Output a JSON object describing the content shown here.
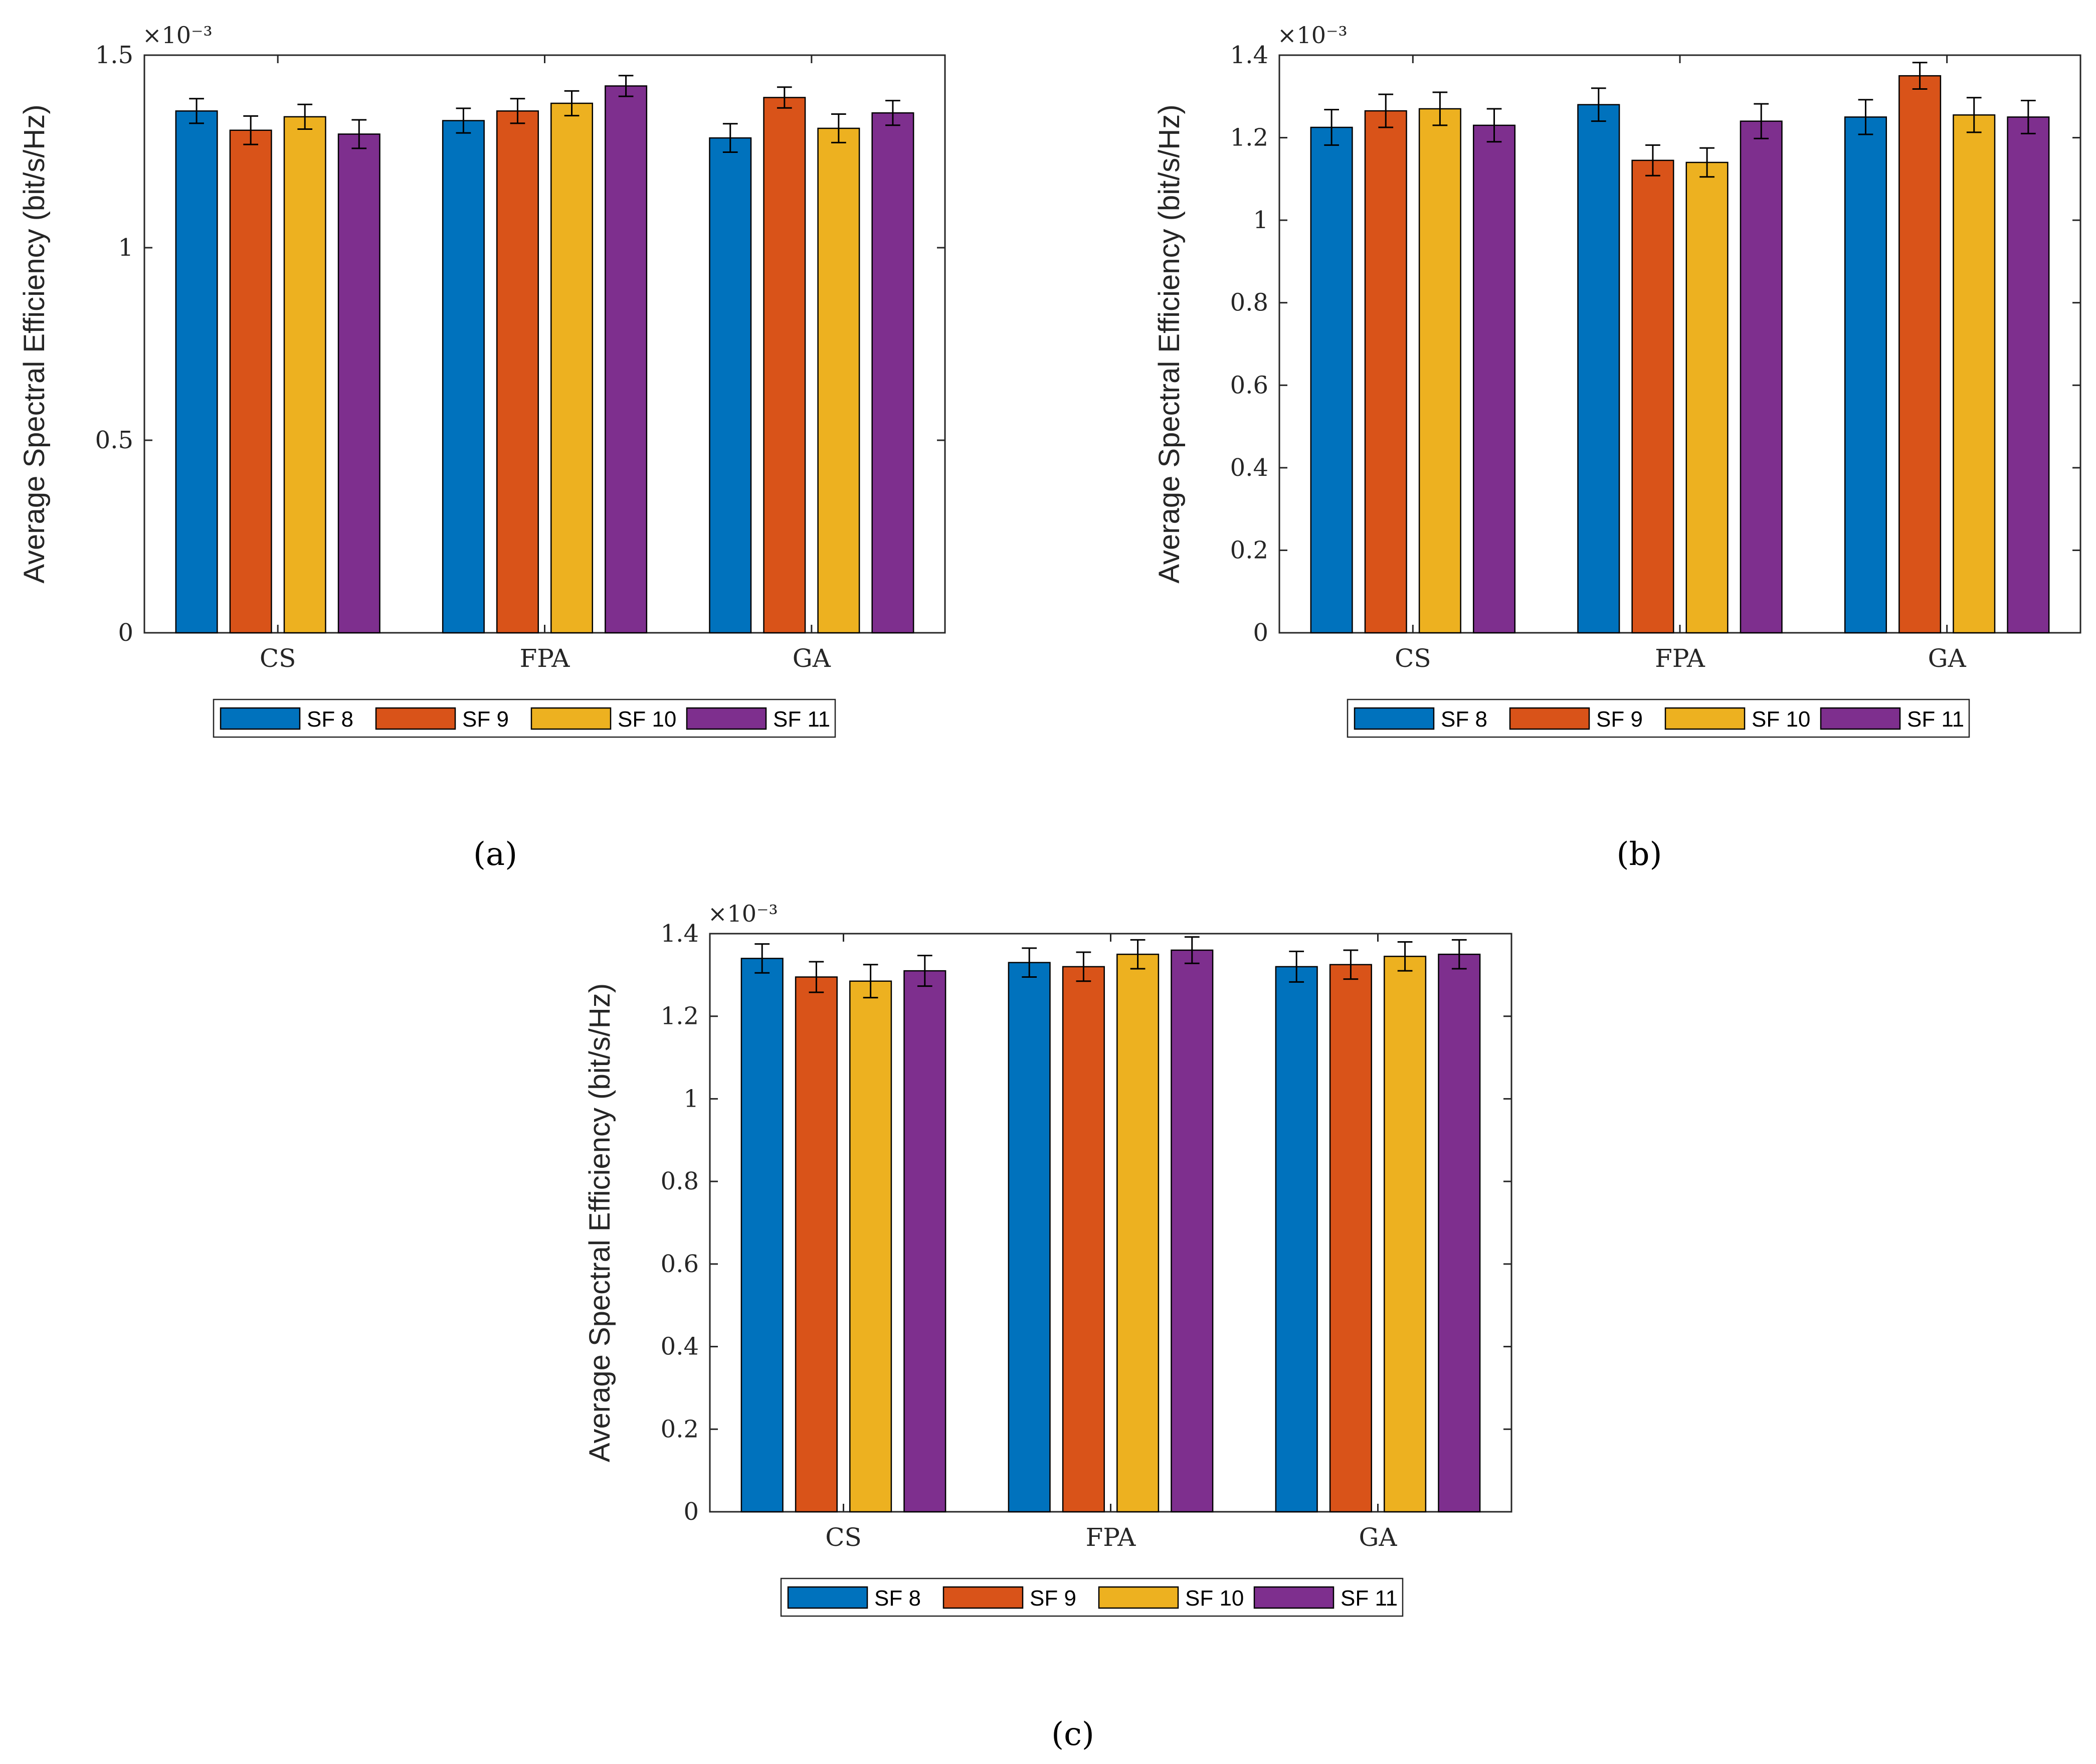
{
  "chart_data": [
    {
      "type": "bar",
      "panel": "a",
      "caption": "(a)",
      "categories": [
        "CS",
        "FPA",
        "GA"
      ],
      "series": [
        {
          "name": "SF 8",
          "values": [
            1.355,
            1.33,
            1.285
          ],
          "errors": [
            0.032,
            0.032,
            0.037
          ]
        },
        {
          "name": "SF 9",
          "values": [
            1.305,
            1.355,
            1.39
          ],
          "errors": [
            0.037,
            0.032,
            0.027
          ]
        },
        {
          "name": "SF 10",
          "values": [
            1.34,
            1.375,
            1.31
          ],
          "errors": [
            0.032,
            0.032,
            0.037
          ]
        },
        {
          "name": "SF 11",
          "values": [
            1.295,
            1.42,
            1.35
          ],
          "errors": [
            0.037,
            0.027,
            0.032
          ]
        }
      ],
      "ylabel": "Average Spectral Efficiency (bit/s/Hz)",
      "xlabel": "",
      "ylim": [
        0,
        1.5
      ],
      "yticks": [
        0,
        0.5,
        1,
        1.5
      ],
      "ytick_labels": [
        "0",
        "0.5",
        "1",
        "1.5"
      ],
      "exponent_label": "×10⁻³",
      "legend": "bottom-center"
    },
    {
      "type": "bar",
      "panel": "b",
      "caption": "(b)",
      "categories": [
        "CS",
        "FPA",
        "GA"
      ],
      "series": [
        {
          "name": "SF 8",
          "values": [
            1.225,
            1.28,
            1.25
          ],
          "errors": [
            0.043,
            0.04,
            0.042
          ]
        },
        {
          "name": "SF 9",
          "values": [
            1.265,
            1.145,
            1.35
          ],
          "errors": [
            0.04,
            0.037,
            0.032
          ]
        },
        {
          "name": "SF 10",
          "values": [
            1.27,
            1.14,
            1.255
          ],
          "errors": [
            0.04,
            0.035,
            0.042
          ]
        },
        {
          "name": "SF 11",
          "values": [
            1.23,
            1.24,
            1.25
          ],
          "errors": [
            0.04,
            0.042,
            0.04
          ]
        }
      ],
      "ylabel": "Average Spectral Efficiency (bit/s/Hz)",
      "xlabel": "",
      "ylim": [
        0,
        1.4
      ],
      "yticks": [
        0,
        0.2,
        0.4,
        0.6,
        0.8,
        1,
        1.2,
        1.4
      ],
      "ytick_labels": [
        "0",
        "0.2",
        "0.4",
        "0.6",
        "0.8",
        "1",
        "1.2",
        "1.4"
      ],
      "exponent_label": "×10⁻³",
      "legend": "bottom-center"
    },
    {
      "type": "bar",
      "panel": "c",
      "caption": "(c)",
      "categories": [
        "CS",
        "FPA",
        "GA"
      ],
      "series": [
        {
          "name": "SF 8",
          "values": [
            1.34,
            1.33,
            1.32
          ],
          "errors": [
            0.035,
            0.035,
            0.037
          ]
        },
        {
          "name": "SF 9",
          "values": [
            1.295,
            1.32,
            1.325
          ],
          "errors": [
            0.037,
            0.035,
            0.035
          ]
        },
        {
          "name": "SF 10",
          "values": [
            1.285,
            1.35,
            1.345
          ],
          "errors": [
            0.04,
            0.035,
            0.035
          ]
        },
        {
          "name": "SF 11",
          "values": [
            1.31,
            1.36,
            1.35
          ],
          "errors": [
            0.037,
            0.032,
            0.035
          ]
        }
      ],
      "ylabel": "Average Spectral Efficiency (bit/s/Hz)",
      "xlabel": "",
      "ylim": [
        0,
        1.4
      ],
      "yticks": [
        0,
        0.2,
        0.4,
        0.6,
        0.8,
        1,
        1.2,
        1.4
      ],
      "ytick_labels": [
        "0",
        "0.2",
        "0.4",
        "0.6",
        "0.8",
        "1",
        "1.2",
        "1.4"
      ],
      "exponent_label": "×10⁻³",
      "legend": "bottom-center"
    }
  ],
  "colors": {
    "SF 8": "#0072BD",
    "SF 9": "#D95319",
    "SF 10": "#EDB120",
    "SF 11": "#7E2F8E",
    "axis": "#262626",
    "bar_edge": "#000000"
  }
}
